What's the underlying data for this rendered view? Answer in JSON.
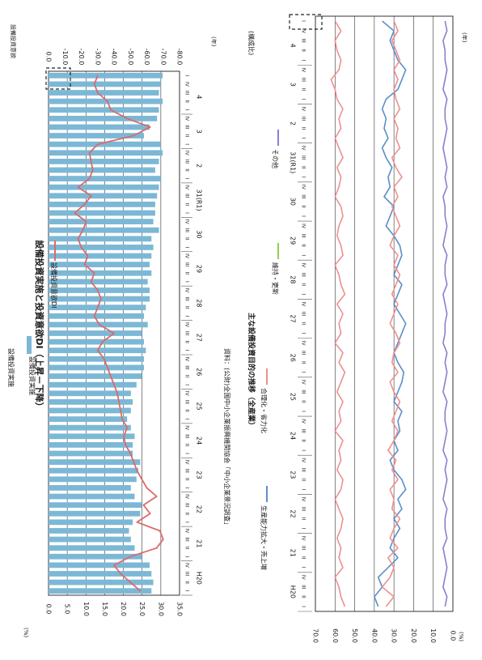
{
  "colors": {
    "bar": "#7cb8d6",
    "dibi_line": "#d96b6b",
    "production_capacity": "#5b8ec9",
    "rationalization": "#ee8f8f",
    "maintenance": "#8fcf4f",
    "other": "#8a7fd0",
    "grid": "#333333",
    "dashed": "#222222"
  },
  "chart_data": [
    {
      "type": "bar",
      "orientation": "rotated-90",
      "title": "設備投資実施と投資意欲DI（上昇－下降）",
      "legend": {
        "bar_label": "設備投資実施",
        "line_label": "設備投資意欲DI",
        "placement": "top"
      },
      "ylabel_left": "設備投資実施",
      "ylabel_left_unit": "(%)",
      "ylabel_right": "設備投資意欲",
      "xlabel_unit": "(年)",
      "source": "資料：(公財)全国中小企業振興機関協会「中小企業景況調査」",
      "ylim_left": [
        0,
        35
      ],
      "ylim_right": [
        -80,
        0
      ],
      "left_ticks": [
        "0.0",
        "5.0",
        "10.0",
        "15.0",
        "20.0",
        "25.0",
        "30.0",
        "35.0"
      ],
      "right_ticks": [
        "0.0",
        "-10.0",
        "-20.0",
        "-30.0",
        "-40.0",
        "-50.0",
        "-60.0",
        "-70.0",
        "-80.0"
      ],
      "years": [
        "H20",
        "21",
        "22",
        "23",
        "24",
        "25",
        "26",
        "27",
        "28",
        "29",
        "30",
        "31(R1)",
        "2",
        "3",
        "4"
      ],
      "quarter_labels": [
        "I",
        "II",
        "III",
        "IV"
      ],
      "bars": [
        27.5,
        28.0,
        27.5,
        27.0,
        25.0,
        23.0,
        22.0,
        21.5,
        22.5,
        24.5,
        25.0,
        23.0,
        22.0,
        23.5,
        24.0,
        24.5,
        22.5,
        22.5,
        23.0,
        22.0,
        21.0,
        22.0,
        22.5,
        22.0,
        23.5,
        25.0,
        25.5,
        25.5,
        26.0,
        25.5,
        25.0,
        26.5,
        25.5,
        26.0,
        27.0,
        27.0,
        26.5,
        27.5,
        27.0,
        27.5,
        28.0,
        27.5,
        29.5,
        28.0,
        28.5,
        28.5,
        29.0,
        29.5,
        30.0,
        28.5,
        29.5,
        30.5,
        30.0,
        25.5,
        27.0,
        29.0,
        29.5,
        30.5,
        29.5,
        30.0,
        30.5
      ],
      "dibi": [
        -56,
        -50,
        -44,
        -40,
        -50,
        -66,
        -70,
        -68,
        -54,
        -62,
        -58,
        -66,
        -60,
        -57,
        -54,
        -52,
        -50,
        -47,
        -46,
        -48,
        -45,
        -44,
        -43,
        -42,
        -40,
        -38,
        -36,
        -34,
        -30,
        -33,
        -40,
        -31,
        -28,
        -30,
        -32,
        -30,
        -26,
        -28,
        -22,
        -24,
        -20,
        -18,
        -21,
        -23,
        -16,
        -22,
        -26,
        -18,
        -25,
        -27,
        -26,
        -25,
        -30,
        -52,
        -62,
        -48,
        -38,
        -36,
        -30,
        -28,
        -30
      ]
    },
    {
      "type": "line",
      "orientation": "rotated-90",
      "title": "主な設備投資目的の推移（全産業）",
      "yunit": "(%)",
      "xlabel_unit": "(年)",
      "right_label": "(構成比)",
      "ylim": [
        0,
        70
      ],
      "y_ticks": [
        "0.0",
        "10.0",
        "20.0",
        "30.0",
        "40.0",
        "50.0",
        "60.0",
        "70.0"
      ],
      "years": [
        "H20",
        "21",
        "22",
        "23",
        "24",
        "25",
        "26",
        "27",
        "28",
        "29",
        "30",
        "31(R1)",
        "2",
        "3",
        "4"
      ],
      "quarter_labels": [
        "I",
        "II",
        "III",
        "IV"
      ],
      "series": [
        {
          "name": "生産能力拡大・売上増",
          "values": [
            38,
            40,
            36,
            38,
            33,
            28,
            32,
            30,
            27,
            30,
            26,
            28,
            24,
            26,
            30,
            32,
            28,
            30,
            27,
            28,
            26,
            30,
            28,
            26,
            25,
            28,
            30,
            28,
            26,
            24,
            27,
            30,
            28,
            26,
            30,
            28,
            26,
            27,
            30,
            34,
            32,
            30,
            35,
            32,
            33,
            31,
            34,
            36,
            33,
            35,
            34,
            36,
            34,
            28,
            26,
            24,
            28,
            30,
            32,
            30,
            36
          ]
        },
        {
          "name": "合理化・省力化",
          "values": [
            34,
            30,
            36,
            32,
            30,
            33,
            28,
            32,
            30,
            27,
            31,
            30,
            32,
            28,
            31,
            29,
            33,
            30,
            28,
            31,
            29,
            27,
            30,
            32,
            28,
            31,
            30,
            27,
            29,
            32,
            30,
            28,
            31,
            29,
            27,
            30,
            28,
            32,
            30,
            27,
            29,
            31,
            28,
            30,
            26,
            29,
            31,
            27,
            29,
            28,
            30,
            27,
            29,
            30,
            28,
            30,
            27,
            29,
            31,
            28,
            30
          ]
        },
        {
          "name": "維持・更新",
          "values": [
            55,
            57,
            58,
            60,
            56,
            58,
            57,
            59,
            57,
            56,
            58,
            60,
            57,
            56,
            59,
            57,
            58,
            56,
            60,
            57,
            58,
            56,
            59,
            57,
            55,
            58,
            56,
            60,
            57,
            58,
            56,
            59,
            55,
            57,
            58,
            60,
            56,
            57,
            59,
            58,
            56,
            57,
            60,
            58,
            57,
            59,
            56,
            58,
            60,
            57,
            58,
            56,
            59,
            60,
            62,
            58,
            57,
            59,
            60,
            57,
            60
          ]
        },
        {
          "name": "その他",
          "values": [
            4,
            3,
            5,
            4,
            3,
            4,
            5,
            3,
            4,
            4,
            3,
            5,
            4,
            3,
            4,
            3,
            5,
            4,
            3,
            4,
            4,
            3,
            5,
            4,
            3,
            4,
            3,
            5,
            4,
            4,
            3,
            4,
            5,
            3,
            4,
            4,
            3,
            5,
            4,
            3,
            4,
            4,
            5,
            3,
            4,
            3,
            4,
            5,
            4,
            3,
            4,
            4,
            3,
            5,
            4,
            3,
            4,
            4,
            5,
            3,
            4
          ]
        }
      ]
    }
  ]
}
